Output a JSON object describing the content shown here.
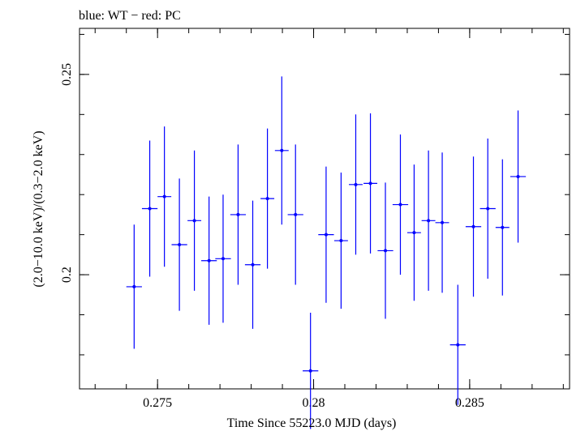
{
  "chart_data": {
    "type": "scatter",
    "title": "blue: WT − red: PC",
    "xlabel": "Time Since 55223.0 MJD (days)",
    "ylabel": "(2.0−10.0 keV)/(0.3−2.0 keV)",
    "xlim": [
      0.2725,
      0.2882
    ],
    "ylim": [
      0.1715,
      0.2615
    ],
    "x_ticks": [
      {
        "value": 0.275,
        "label": "0.275"
      },
      {
        "value": 0.28,
        "label": "0.28"
      },
      {
        "value": 0.285,
        "label": "0.285"
      }
    ],
    "y_ticks": [
      {
        "value": 0.2,
        "label": "0.2"
      },
      {
        "value": 0.25,
        "label": "0.25"
      }
    ],
    "x_minor_step": 0.001,
    "y_minor_step": 0.01,
    "grid": false,
    "series": [
      {
        "color": "#0000ff",
        "points": [
          {
            "x": 0.27425,
            "xerr": 0.00025,
            "y": 0.197,
            "yerr": 0.0155
          },
          {
            "x": 0.27475,
            "xerr": 0.00025,
            "y": 0.2165,
            "yerr": 0.017
          },
          {
            "x": 0.27522,
            "xerr": 0.00022,
            "y": 0.2195,
            "yerr": 0.0175
          },
          {
            "x": 0.2757,
            "xerr": 0.00025,
            "y": 0.2075,
            "yerr": 0.0165
          },
          {
            "x": 0.27618,
            "xerr": 0.00022,
            "y": 0.2135,
            "yerr": 0.0175
          },
          {
            "x": 0.27665,
            "xerr": 0.00025,
            "y": 0.2035,
            "yerr": 0.016
          },
          {
            "x": 0.2771,
            "xerr": 0.00025,
            "y": 0.204,
            "yerr": 0.016
          },
          {
            "x": 0.27758,
            "xerr": 0.00025,
            "y": 0.215,
            "yerr": 0.0175
          },
          {
            "x": 0.27805,
            "xerr": 0.00025,
            "y": 0.2025,
            "yerr": 0.016
          },
          {
            "x": 0.27852,
            "xerr": 0.00022,
            "y": 0.219,
            "yerr": 0.0175
          },
          {
            "x": 0.27898,
            "xerr": 0.00022,
            "y": 0.231,
            "yerr": 0.0185
          },
          {
            "x": 0.27942,
            "xerr": 0.00025,
            "y": 0.215,
            "yerr": 0.0175
          },
          {
            "x": 0.2799,
            "xerr": 0.00025,
            "y": 0.176,
            "yerr": 0.0145
          },
          {
            "x": 0.2804,
            "xerr": 0.00025,
            "y": 0.21,
            "yerr": 0.017
          },
          {
            "x": 0.28088,
            "xerr": 0.00022,
            "y": 0.2085,
            "yerr": 0.017
          },
          {
            "x": 0.28135,
            "xerr": 0.00022,
            "y": 0.2225,
            "yerr": 0.0175
          },
          {
            "x": 0.28182,
            "xerr": 0.00022,
            "y": 0.2228,
            "yerr": 0.0175
          },
          {
            "x": 0.2823,
            "xerr": 0.00025,
            "y": 0.206,
            "yerr": 0.017
          },
          {
            "x": 0.28278,
            "xerr": 0.00025,
            "y": 0.2175,
            "yerr": 0.0175
          },
          {
            "x": 0.28322,
            "xerr": 0.00022,
            "y": 0.2105,
            "yerr": 0.017
          },
          {
            "x": 0.28368,
            "xerr": 0.00022,
            "y": 0.2135,
            "yerr": 0.0175
          },
          {
            "x": 0.28412,
            "xerr": 0.00022,
            "y": 0.213,
            "yerr": 0.0175
          },
          {
            "x": 0.28462,
            "xerr": 0.00025,
            "y": 0.1825,
            "yerr": 0.015
          },
          {
            "x": 0.28512,
            "xerr": 0.00025,
            "y": 0.212,
            "yerr": 0.0175
          },
          {
            "x": 0.28558,
            "xerr": 0.00025,
            "y": 0.2165,
            "yerr": 0.0175
          },
          {
            "x": 0.28605,
            "xerr": 0.00022,
            "y": 0.2118,
            "yerr": 0.017
          },
          {
            "x": 0.28655,
            "xerr": 0.00025,
            "y": 0.2245,
            "yerr": 0.0165
          }
        ]
      }
    ]
  }
}
